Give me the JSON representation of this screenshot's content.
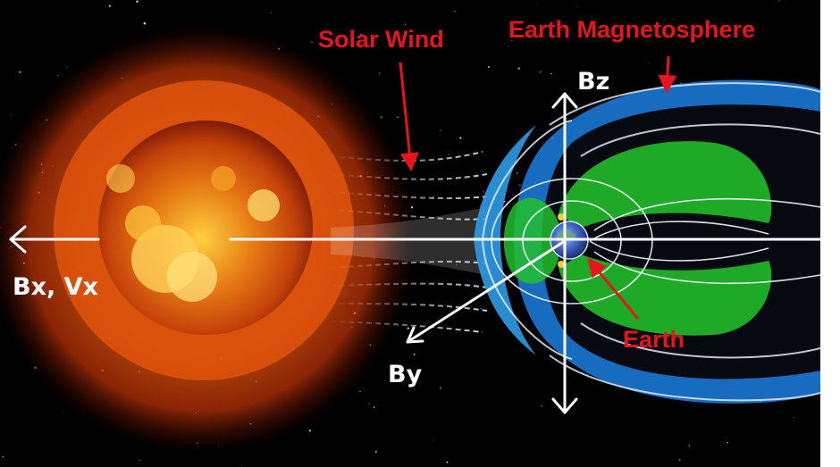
{
  "labels": {
    "solar_wind": "Solar Wind",
    "magnetosphere": "Earth Magnetosphere",
    "earth": "Earth",
    "bx_vx": "Bx, Vx",
    "by": "By",
    "bz": "Bz"
  },
  "colors": {
    "annotation": "#e8141c",
    "axis": "#ffffff",
    "space": "#000000",
    "sun_core": "#ffdc6a",
    "sun_edge": "#d0320a",
    "plasma": "#1a8be0",
    "radiation_belt": "#22c02a"
  }
}
